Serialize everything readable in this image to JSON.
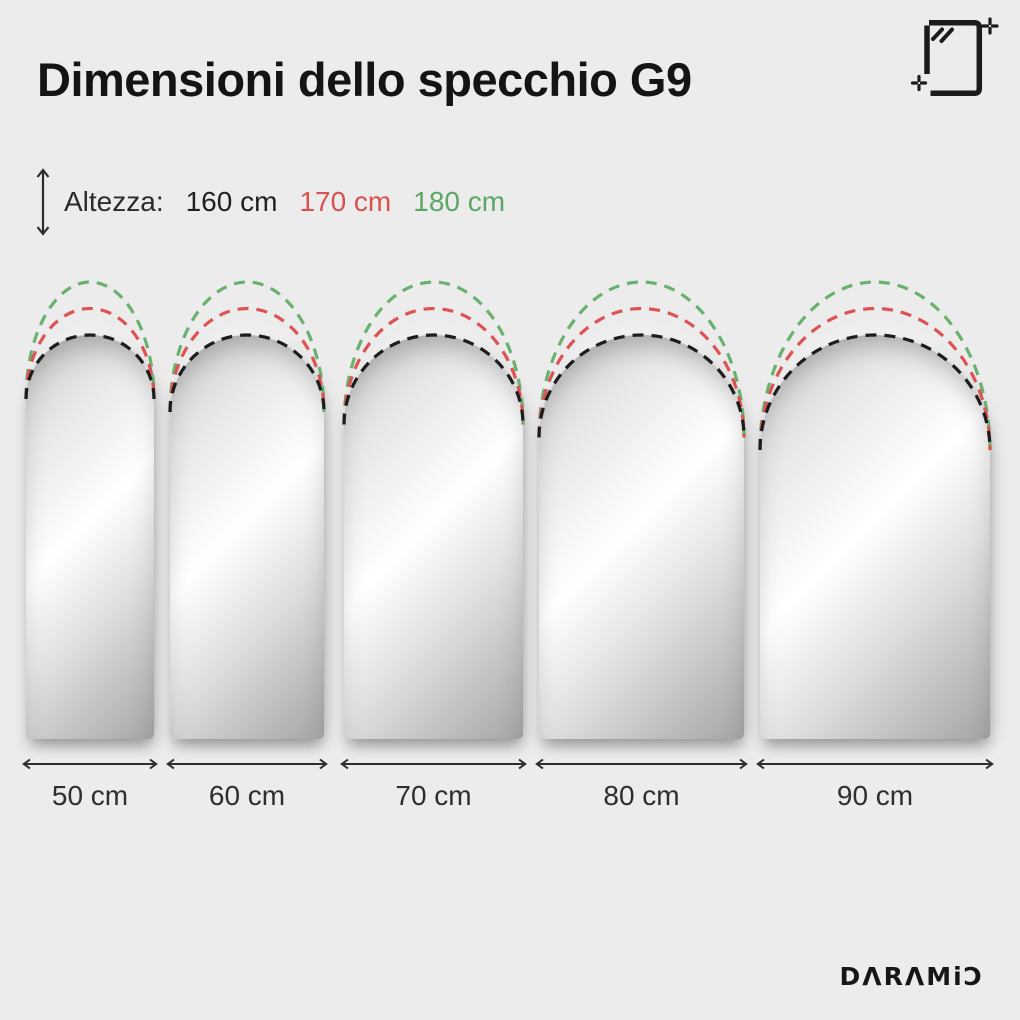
{
  "title": "Dimensioni dello specchio G9",
  "legend": {
    "label": "Altezza:",
    "options": [
      {
        "label": "160 cm",
        "height_cm": 160,
        "color": "#212121"
      },
      {
        "label": "170 cm",
        "height_cm": 170,
        "color": "#d95050"
      },
      {
        "label": "180 cm",
        "height_cm": 180,
        "color": "#5ba766"
      }
    ]
  },
  "arc_colors": {
    "h160": "#1c1c1c",
    "h170": "#dd5353",
    "h180": "#69b16e"
  },
  "mirrors": [
    {
      "width_label": "50 cm",
      "width_cm": 50
    },
    {
      "width_label": "60 cm",
      "width_cm": 60
    },
    {
      "width_label": "70 cm",
      "width_cm": 70
    },
    {
      "width_label": "80 cm",
      "width_cm": 80
    },
    {
      "width_label": "90 cm",
      "width_cm": 90
    }
  ],
  "icons": {
    "corner_icon": "mirror-with-sparkles-icon",
    "legend_icon": "vertical-double-arrow-icon"
  },
  "brand": "DΛRΛMiƆ"
}
